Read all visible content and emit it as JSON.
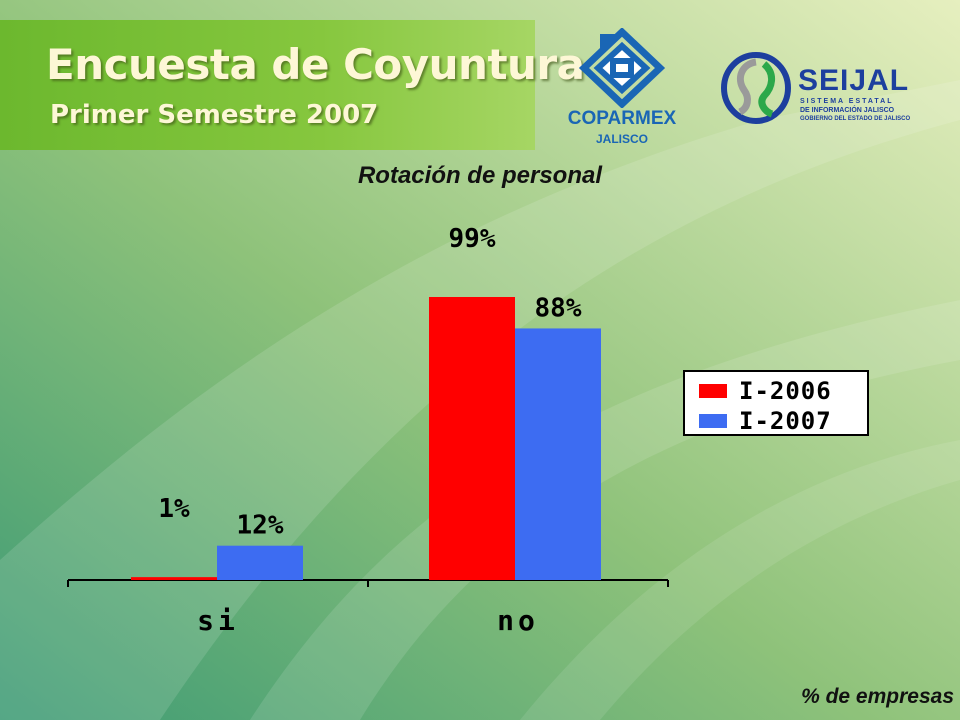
{
  "header": {
    "title": "Encuesta de Coyuntura",
    "subtitle": "Primer Semestre 2007"
  },
  "logos": {
    "coparmex": {
      "name": "COPARMEX",
      "sub": "JALISCO"
    },
    "seijal": {
      "name_a": "SEI",
      "name_b": "JAL",
      "line1": "SISTEMA ESTATAL",
      "line2": "DE INFORMACIÓN JALISCO",
      "line3": "GOBIERNO DEL ESTADO DE JALISCO"
    }
  },
  "chart_data": {
    "type": "bar",
    "title": "Rotación de personal",
    "categories": [
      "si",
      "no"
    ],
    "series": [
      {
        "name": "I-2006",
        "values": [
          1,
          99
        ],
        "labels": [
          "1%",
          "99%"
        ],
        "color": "#ff0000"
      },
      {
        "name": "I-2007",
        "values": [
          12,
          88
        ],
        "labels": [
          "12%",
          "88%"
        ],
        "color": "#3d6cf2"
      }
    ],
    "ylim": [
      0,
      100
    ],
    "legend": "right",
    "grid": false
  },
  "footnote": "% de empresas",
  "colors": {
    "accent_green": "#7cc23a",
    "coparmex_blue": "#1a66b5",
    "seijal_blue": "#1d3f9e"
  }
}
